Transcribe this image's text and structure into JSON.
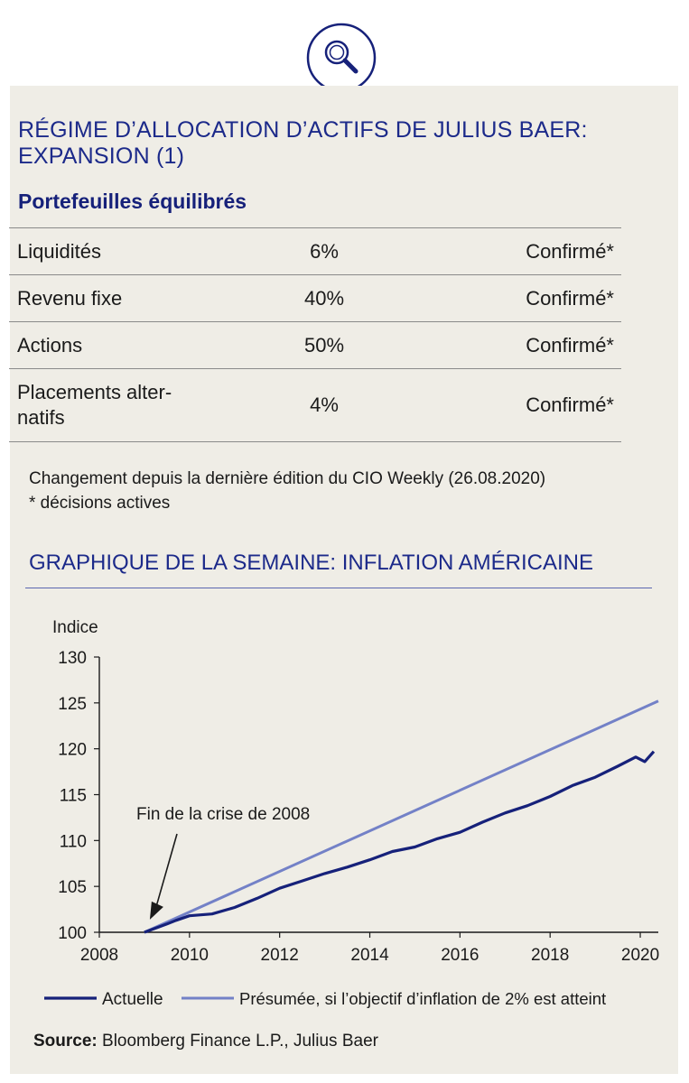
{
  "allocation": {
    "title_line1": "RÉGIME D’ALLOCATION D’ACTIFS DE JULIUS BAER:",
    "title_line2": "EXPANSION (1)",
    "subtitle": "Portefeuilles équilibrés",
    "rows": [
      {
        "label": "Liquidités",
        "value": "6%",
        "status": "Confirmé*"
      },
      {
        "label": "Revenu fixe",
        "value": "40%",
        "status": "Confirmé*"
      },
      {
        "label": "Actions",
        "value": "50%",
        "status": "Confirmé*"
      },
      {
        "label_line1": "Placements alter-",
        "label_line2": "natifs",
        "value": "4%",
        "status": "Confirmé*"
      }
    ],
    "note1": "Changement depuis la dernière édition du CIO Weekly (26.08.2020)",
    "note2": "* décisions actives"
  },
  "chart_title": "GRAPHIQUE DE LA SEMAINE: INFLATION AMÉRICAINE",
  "chart_data": {
    "type": "line",
    "ylabel": "Indice",
    "xlim": [
      2008,
      2020.4
    ],
    "ylim": [
      100,
      130
    ],
    "x_ticks": [
      2008,
      2010,
      2012,
      2014,
      2016,
      2018,
      2020
    ],
    "y_ticks": [
      100,
      105,
      110,
      115,
      120,
      125,
      130
    ],
    "annotation": {
      "text": "Fin de la crise de 2008",
      "x": 2009.1,
      "y": 100.4
    },
    "legend_position": "bottom",
    "series": [
      {
        "name": "Actuelle",
        "color": "#16217a",
        "points": [
          [
            2009.0,
            100.0
          ],
          [
            2009.5,
            100.9
          ],
          [
            2009.7,
            101.3
          ],
          [
            2010.0,
            101.8
          ],
          [
            2010.5,
            102.0
          ],
          [
            2011.0,
            102.7
          ],
          [
            2011.5,
            103.7
          ],
          [
            2012.0,
            104.8
          ],
          [
            2012.5,
            105.6
          ],
          [
            2013.0,
            106.4
          ],
          [
            2013.5,
            107.1
          ],
          [
            2014.0,
            107.9
          ],
          [
            2014.5,
            108.8
          ],
          [
            2015.0,
            109.3
          ],
          [
            2015.5,
            110.2
          ],
          [
            2016.0,
            110.9
          ],
          [
            2016.5,
            112.0
          ],
          [
            2017.0,
            113.0
          ],
          [
            2017.5,
            113.8
          ],
          [
            2018.0,
            114.8
          ],
          [
            2018.5,
            116.0
          ],
          [
            2019.0,
            116.9
          ],
          [
            2019.5,
            118.1
          ],
          [
            2019.9,
            119.1
          ],
          [
            2020.1,
            118.6
          ],
          [
            2020.3,
            119.7
          ]
        ]
      },
      {
        "name": "Présumée, si l’objectif d’inflation de 2% est atteint",
        "color": "#7381c7",
        "points": [
          [
            2009.0,
            100.0
          ],
          [
            2020.4,
            125.2
          ]
        ]
      }
    ]
  },
  "source": {
    "label": "Source:",
    "text": " Bloomberg Finance L.P., Julius Baer"
  },
  "colors": {
    "accent": "#1c2a8a",
    "panel": "#efede6"
  }
}
